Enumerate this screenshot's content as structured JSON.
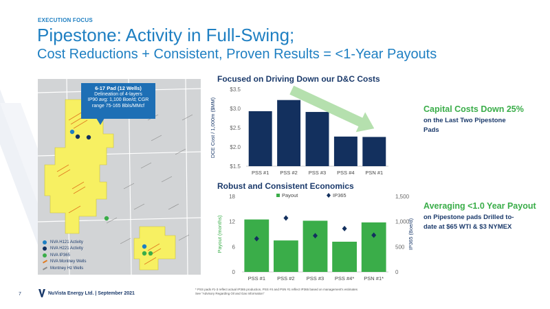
{
  "header": {
    "eyebrow": "EXECUTION FOCUS",
    "title_line1": "Pipestone: Activity in Full-Swing;",
    "title_line2": "Cost Reductions + Consistent, Proven Results = <1-Year Payouts"
  },
  "map": {
    "callout_title": "6-17 Pad (12 Wells)",
    "callout_line1": "Delineation of 4-layers",
    "callout_line2": "IP90 avg: 1,100 Boe/d; CGR",
    "callout_line3": "range 75-165 Bbls/MMcf",
    "legend": [
      {
        "label": "NVA H121 Activity",
        "color": "#1e7fc2",
        "kind": "dot"
      },
      {
        "label": "NVA H221 Activity",
        "color": "#13305e",
        "kind": "dot"
      },
      {
        "label": "NVA IP365",
        "color": "#3aad49",
        "kind": "dot"
      },
      {
        "label": "NVA Montney Wells",
        "color": "#e07b20",
        "kind": "line"
      },
      {
        "label": "Montney Hz Wells",
        "color": "#8a8a8a",
        "kind": "line"
      }
    ],
    "colors": {
      "land": "#d2d4d6",
      "acreage": "#f7f062",
      "grid": "#ffffff"
    }
  },
  "chart1_title": "Focused on Driving Down our D&C Costs",
  "chart2_title": "Robust and Consistent Economics",
  "side1": {
    "head": "Capital Costs Down 25%",
    "body1": "on the Last Two Pipestone",
    "body2": "Pads"
  },
  "side2": {
    "head": "Averaging <1.0 Year Payout",
    "body1": "on Pipestone pads Drilled to-",
    "body2": "date at $65 WTI & $3 NYMEX"
  },
  "footer": {
    "page": "7",
    "company": "NuVista Energy Ltd. | September 2021",
    "note1": "* PSS pads #1-3 reflect actual IP365 production, PSS #4 and PSN #1 reflect IP365 based on management's estimates",
    "note2": "See \"Advisory Regarding Oil and Gas Information\""
  },
  "chart_data": [
    {
      "type": "bar",
      "title": "Focused on Driving Down our D&C Costs",
      "categories": [
        "PSS #1",
        "PSS #2",
        "PSS #3",
        "PSS #4",
        "PSN #1"
      ],
      "values": [
        2.93,
        3.22,
        2.91,
        2.27,
        2.26
      ],
      "ylabel": "DCE Cost / 1,000m ($MM)",
      "ylim": [
        1.5,
        3.5
      ],
      "yticks": [
        "$1.5",
        "$2.0",
        "$2.5",
        "$3.0",
        "$3.5"
      ],
      "ytick_values": [
        1.5,
        2.0,
        2.5,
        3.0,
        3.5
      ],
      "bar_color": "#13305e",
      "arrow_color": "#a8dba0",
      "grid": false
    },
    {
      "type": "bar",
      "title": "Robust and Consistent Economics",
      "categories": [
        "PSS #1",
        "PSS #2",
        "PSS #3",
        "PSS #4*",
        "PSN #1*"
      ],
      "series": [
        {
          "name": "Payout",
          "values": [
            12.5,
            7.5,
            12.2,
            7.2,
            11.8
          ],
          "color": "#3aad49",
          "kind": "bar",
          "axis": "left"
        },
        {
          "name": "IP365",
          "values": [
            660,
            1070,
            720,
            860,
            730
          ],
          "color": "#13305e",
          "kind": "marker",
          "axis": "right"
        }
      ],
      "ylabel": "Payout (months)",
      "ylim": [
        0,
        18
      ],
      "yticks": [
        0,
        6,
        12,
        18
      ],
      "y2label": "IP365 (Boe/d)",
      "y2lim": [
        0,
        1500
      ],
      "y2ticks": [
        "0",
        "500",
        "1,000",
        "1,500"
      ],
      "y2tick_values": [
        0,
        500,
        1000,
        1500
      ],
      "legend": "top",
      "grid": false
    }
  ]
}
